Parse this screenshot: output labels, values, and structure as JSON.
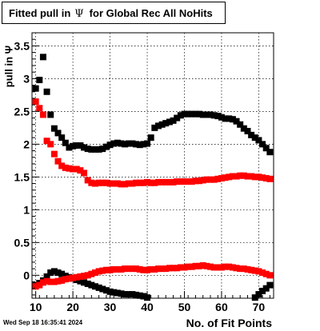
{
  "title": {
    "prefix": "Fitted pull in",
    "symbol": "Ψ",
    "suffix": "for Global Rec All NoHits"
  },
  "timestamp": "Wed Sep 18 16:35:41 2024",
  "chart_data": {
    "type": "scatter",
    "title": "Fitted pull in Ψ for Global Rec All NoHits",
    "xlabel": "No. of Fit Points",
    "ylabel": "pull in Ψ",
    "xlim": [
      9,
      74
    ],
    "ylim": [
      -0.35,
      3.7
    ],
    "xticks": [
      10,
      20,
      30,
      40,
      50,
      60,
      70
    ],
    "yticks": [
      0,
      0.5,
      1,
      1.5,
      2,
      2.5,
      3,
      3.5
    ],
    "ytick_labels": [
      "0",
      "0.5",
      "1",
      "1.5",
      "2",
      "2.5",
      "3",
      "3.5"
    ],
    "grid": true,
    "series": [
      {
        "color": "#000000",
        "x": [
          10,
          11,
          12,
          13,
          14,
          15,
          16,
          17,
          18,
          19,
          20,
          21,
          22,
          23,
          24,
          25,
          26,
          27,
          28,
          29,
          30,
          31,
          32,
          33,
          34,
          35,
          36,
          37,
          38,
          39,
          40,
          41,
          42,
          43,
          44,
          45,
          46,
          47,
          48,
          49,
          50,
          51,
          52,
          53,
          54,
          55,
          56,
          57,
          58,
          59,
          60,
          61,
          62,
          63,
          64,
          65,
          66,
          67,
          68,
          69,
          70,
          71,
          72,
          73
        ],
        "values": [
          2.85,
          2.98,
          3.33,
          2.8,
          2.45,
          2.24,
          2.17,
          2.1,
          2.02,
          1.95,
          1.97,
          1.98,
          1.98,
          1.95,
          1.93,
          1.92,
          1.92,
          1.92,
          1.93,
          1.96,
          1.99,
          2.01,
          2.02,
          2.01,
          2.0,
          2.01,
          2.01,
          2.0,
          1.99,
          2.0,
          2.01,
          2.1,
          2.25,
          2.28,
          2.3,
          2.32,
          2.34,
          2.36,
          2.4,
          2.44,
          2.46,
          2.46,
          2.46,
          2.46,
          2.46,
          2.45,
          2.45,
          2.45,
          2.44,
          2.43,
          2.41,
          2.39,
          2.39,
          2.38,
          2.35,
          2.3,
          2.24,
          2.2,
          2.14,
          2.1,
          2.06,
          2.0,
          1.94,
          1.88
        ]
      },
      {
        "color": "#ff0000",
        "x": [
          10,
          11,
          12,
          13,
          14,
          15,
          16,
          17,
          18,
          19,
          20,
          21,
          22,
          23,
          24,
          25,
          26,
          27,
          28,
          29,
          30,
          31,
          32,
          33,
          34,
          35,
          36,
          37,
          38,
          39,
          40,
          41,
          42,
          43,
          44,
          45,
          46,
          47,
          48,
          49,
          50,
          51,
          52,
          53,
          54,
          55,
          56,
          57,
          58,
          59,
          60,
          61,
          62,
          63,
          64,
          65,
          66,
          67,
          68,
          69,
          70,
          71,
          72,
          73
        ],
        "values": [
          2.65,
          2.55,
          2.45,
          2.05,
          2.0,
          1.85,
          1.74,
          1.67,
          1.64,
          1.63,
          1.62,
          1.62,
          1.6,
          1.56,
          1.45,
          1.41,
          1.4,
          1.41,
          1.41,
          1.41,
          1.4,
          1.4,
          1.4,
          1.39,
          1.39,
          1.4,
          1.4,
          1.41,
          1.41,
          1.41,
          1.42,
          1.41,
          1.41,
          1.42,
          1.42,
          1.42,
          1.42,
          1.42,
          1.43,
          1.43,
          1.43,
          1.43,
          1.43,
          1.44,
          1.44,
          1.45,
          1.46,
          1.46,
          1.46,
          1.47,
          1.48,
          1.49,
          1.5,
          1.51,
          1.51,
          1.52,
          1.52,
          1.51,
          1.51,
          1.5,
          1.5,
          1.49,
          1.48,
          1.47
        ]
      },
      {
        "color": "#000000",
        "x": [
          10,
          11,
          12,
          13,
          14,
          15,
          16,
          17,
          18,
          19,
          20,
          21,
          22,
          23,
          24,
          25,
          26,
          27,
          28,
          29,
          30,
          31,
          32,
          33,
          34,
          35,
          36,
          37,
          38,
          39,
          40,
          69,
          70,
          71,
          72,
          73
        ],
        "values": [
          -0.15,
          -0.12,
          -0.08,
          -0.02,
          0.04,
          0.06,
          0.04,
          0.02,
          -0.01,
          -0.03,
          -0.05,
          -0.07,
          -0.09,
          -0.11,
          -0.13,
          -0.15,
          -0.17,
          -0.19,
          -0.21,
          -0.23,
          -0.25,
          -0.26,
          -0.27,
          -0.28,
          -0.29,
          -0.29,
          -0.29,
          -0.3,
          -0.31,
          -0.32,
          -0.34,
          -0.34,
          -0.29,
          -0.24,
          -0.2,
          -0.15
        ]
      },
      {
        "color": "#ff0000",
        "x": [
          10,
          11,
          12,
          13,
          14,
          15,
          16,
          17,
          18,
          19,
          20,
          21,
          22,
          23,
          24,
          25,
          26,
          27,
          28,
          29,
          30,
          31,
          32,
          33,
          34,
          35,
          36,
          37,
          38,
          39,
          40,
          41,
          42,
          43,
          44,
          45,
          46,
          47,
          48,
          49,
          50,
          51,
          52,
          53,
          54,
          55,
          56,
          57,
          58,
          59,
          60,
          61,
          62,
          63,
          64,
          65,
          66,
          67,
          68,
          69,
          70,
          71,
          72,
          73
        ],
        "values": [
          -0.17,
          -0.15,
          -0.11,
          -0.09,
          -0.1,
          -0.1,
          -0.09,
          -0.08,
          -0.06,
          -0.05,
          -0.04,
          -0.03,
          -0.02,
          -0.01,
          0.0,
          0.02,
          0.04,
          0.06,
          0.07,
          0.08,
          0.08,
          0.09,
          0.09,
          0.09,
          0.1,
          0.1,
          0.1,
          0.1,
          0.09,
          0.08,
          0.08,
          0.09,
          0.09,
          0.1,
          0.1,
          0.1,
          0.11,
          0.11,
          0.11,
          0.12,
          0.12,
          0.13,
          0.13,
          0.14,
          0.14,
          0.15,
          0.14,
          0.13,
          0.12,
          0.12,
          0.12,
          0.13,
          0.13,
          0.12,
          0.11,
          0.1,
          0.1,
          0.09,
          0.08,
          0.07,
          0.06,
          0.04,
          0.02,
          0.0
        ]
      }
    ]
  }
}
